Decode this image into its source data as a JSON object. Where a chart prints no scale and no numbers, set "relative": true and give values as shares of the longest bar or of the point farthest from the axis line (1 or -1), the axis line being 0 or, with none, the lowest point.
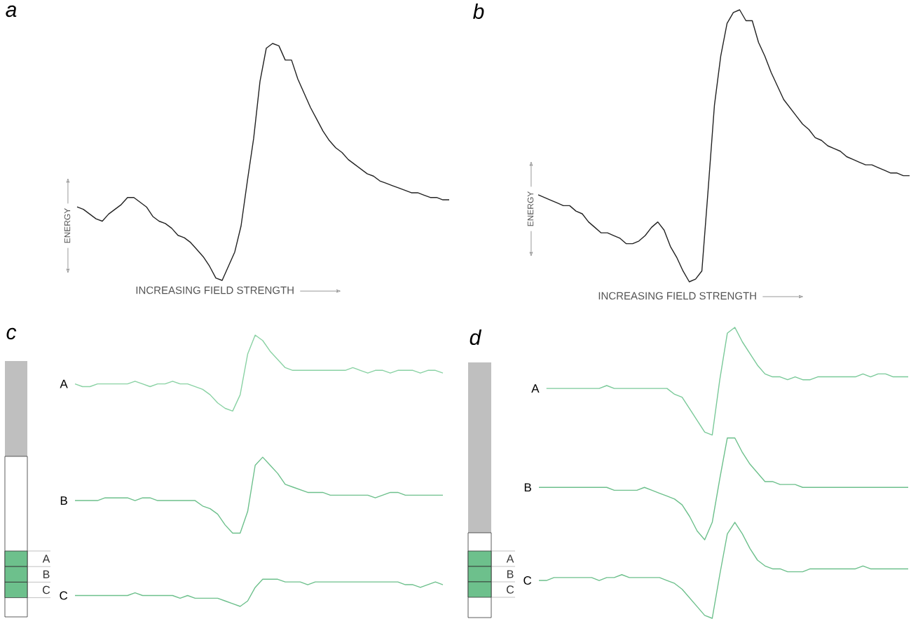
{
  "chart_data": [
    {
      "type": "line",
      "title": "a",
      "xlabel": "INCREASING FIELD STRENGTH",
      "ylabel": "ENERGY",
      "relative": true,
      "categories": [
        null,
        null,
        null,
        null,
        null,
        null,
        null,
        null,
        null,
        null,
        null,
        null,
        null,
        null,
        null,
        null,
        null,
        null,
        null,
        null,
        null,
        null,
        null,
        null,
        null,
        null,
        null,
        null,
        null,
        null,
        null,
        null,
        null,
        null,
        null,
        null,
        null,
        null,
        null,
        null,
        null,
        null,
        null,
        null,
        null,
        null,
        null,
        null,
        null,
        null,
        null,
        null,
        null,
        null,
        null,
        null,
        null,
        null,
        null,
        null
      ],
      "series": [
        {
          "color": "#222222",
          "values": [
            0.31,
            0.3,
            0.28,
            0.26,
            0.25,
            0.28,
            0.3,
            0.32,
            0.35,
            0.35,
            0.33,
            0.31,
            0.27,
            0.25,
            0.24,
            0.22,
            0.19,
            0.18,
            0.16,
            0.13,
            0.1,
            0.06,
            0.01,
            0,
            0.06,
            0.12,
            0.23,
            0.42,
            0.6,
            0.84,
            0.98,
            1,
            0.99,
            0.93,
            0.93,
            0.85,
            0.79,
            0.73,
            0.68,
            0.63,
            0.59,
            0.56,
            0.54,
            0.51,
            0.49,
            0.47,
            0.45,
            0.44,
            0.42,
            0.41,
            0.4,
            0.39,
            0.38,
            0.37,
            0.37,
            0.36,
            0.35,
            0.35,
            0.34,
            0.34
          ]
        }
      ]
    },
    {
      "type": "line",
      "title": "b",
      "xlabel": "INCREASING FIELD STRENGTH",
      "ylabel": "ENERGY",
      "relative": true,
      "categories": [
        null,
        null,
        null,
        null,
        null,
        null,
        null,
        null,
        null,
        null,
        null,
        null,
        null,
        null,
        null,
        null,
        null,
        null,
        null,
        null,
        null,
        null,
        null,
        null,
        null,
        null,
        null,
        null,
        null,
        null,
        null,
        null,
        null,
        null,
        null,
        null,
        null,
        null,
        null,
        null,
        null,
        null,
        null,
        null,
        null,
        null,
        null,
        null,
        null,
        null,
        null,
        null,
        null,
        null,
        null,
        null,
        null,
        null,
        null,
        null
      ],
      "series": [
        {
          "color": "#222222",
          "values": [
            0.32,
            0.31,
            0.3,
            0.29,
            0.28,
            0.28,
            0.26,
            0.25,
            0.22,
            0.2,
            0.18,
            0.18,
            0.17,
            0.16,
            0.14,
            0.14,
            0.15,
            0.17,
            0.2,
            0.22,
            0.19,
            0.13,
            0.09,
            0.04,
            0,
            0.01,
            0.04,
            0.34,
            0.65,
            0.83,
            0.95,
            0.99,
            1,
            0.96,
            0.96,
            0.88,
            0.83,
            0.77,
            0.72,
            0.67,
            0.64,
            0.61,
            0.58,
            0.56,
            0.53,
            0.52,
            0.5,
            0.49,
            0.48,
            0.46,
            0.45,
            0.44,
            0.43,
            0.43,
            0.42,
            0.41,
            0.4,
            0.4,
            0.39,
            0.39
          ]
        }
      ]
    },
    {
      "type": "line",
      "title": "c",
      "relative": true,
      "annotations": [
        "A",
        "B",
        "C"
      ],
      "categories": [
        null,
        null,
        null,
        null,
        null,
        null,
        null,
        null,
        null,
        null,
        null,
        null,
        null,
        null,
        null,
        null,
        null,
        null,
        null,
        null,
        null,
        null,
        null,
        null,
        null,
        null,
        null,
        null,
        null,
        null,
        null,
        null,
        null,
        null,
        null,
        null,
        null,
        null,
        null,
        null,
        null,
        null,
        null,
        null,
        null,
        null,
        null,
        null,
        null,
        null
      ],
      "series": [
        {
          "name": "A",
          "color": "#8ad2a4",
          "values": [
            0.82,
            0.81,
            0.81,
            0.82,
            0.82,
            0.82,
            0.82,
            0.82,
            0.83,
            0.82,
            0.81,
            0.82,
            0.82,
            0.83,
            0.82,
            0.82,
            0.81,
            0.8,
            0.78,
            0.75,
            0.73,
            0.72,
            0.78,
            0.93,
            1,
            0.98,
            0.94,
            0.91,
            0.88,
            0.87,
            0.87,
            0.87,
            0.87,
            0.87,
            0.87,
            0.87,
            0.87,
            0.88,
            0.87,
            0.86,
            0.87,
            0.87,
            0.86,
            0.87,
            0.87,
            0.87,
            0.86,
            0.87,
            0.87,
            0.86
          ]
        },
        {
          "name": "B",
          "color": "#6dc08c",
          "values": [
            0.39,
            0.39,
            0.39,
            0.39,
            0.4,
            0.4,
            0.4,
            0.4,
            0.39,
            0.4,
            0.4,
            0.39,
            0.39,
            0.39,
            0.39,
            0.39,
            0.39,
            0.37,
            0.36,
            0.34,
            0.3,
            0.27,
            0.27,
            0.35,
            0.52,
            0.55,
            0.52,
            0.49,
            0.45,
            0.44,
            0.43,
            0.42,
            0.42,
            0.42,
            0.41,
            0.41,
            0.41,
            0.41,
            0.41,
            0.41,
            0.4,
            0.41,
            0.42,
            0.42,
            0.41,
            0.41,
            0.41,
            0.41,
            0.41,
            0.41
          ]
        },
        {
          "name": "C",
          "color": "#6dc08c",
          "values": [
            0.04,
            0.04,
            0.04,
            0.04,
            0.04,
            0.04,
            0.04,
            0.04,
            0.05,
            0.04,
            0.04,
            0.04,
            0.04,
            0.04,
            0.03,
            0.04,
            0.03,
            0.03,
            0.03,
            0.03,
            0.02,
            0.01,
            0,
            0.02,
            0.07,
            0.1,
            0.1,
            0.1,
            0.09,
            0.09,
            0.09,
            0.08,
            0.09,
            0.09,
            0.09,
            0.09,
            0.09,
            0.09,
            0.09,
            0.09,
            0.09,
            0.09,
            0.09,
            0.09,
            0.08,
            0.08,
            0.07,
            0.08,
            0.09,
            0.08
          ]
        }
      ]
    },
    {
      "type": "line",
      "title": "d",
      "relative": true,
      "annotations": [
        "A",
        "B",
        "C"
      ],
      "categories": [
        null,
        null,
        null,
        null,
        null,
        null,
        null,
        null,
        null,
        null,
        null,
        null,
        null,
        null,
        null,
        null,
        null,
        null,
        null,
        null,
        null,
        null,
        null,
        null,
        null,
        null,
        null,
        null,
        null,
        null,
        null,
        null,
        null,
        null,
        null,
        null,
        null,
        null,
        null,
        null,
        null,
        null,
        null,
        null,
        null,
        null,
        null,
        null,
        null,
        null
      ],
      "series": [
        {
          "name": "A",
          "color": "#7ac999",
          "values": [
            null,
            0.79,
            0.79,
            0.79,
            0.79,
            0.79,
            0.79,
            0.79,
            0.79,
            0.8,
            0.79,
            0.79,
            0.79,
            0.79,
            0.79,
            0.79,
            0.79,
            0.79,
            0.77,
            0.76,
            0.72,
            0.68,
            0.64,
            0.63,
            0.82,
            0.98,
            1,
            0.95,
            0.91,
            0.87,
            0.84,
            0.83,
            0.83,
            0.82,
            0.83,
            0.82,
            0.82,
            0.83,
            0.83,
            0.83,
            0.83,
            0.83,
            0.83,
            0.84,
            0.83,
            0.84,
            0.84,
            0.83,
            0.83,
            0.83
          ]
        },
        {
          "name": "B",
          "color": "#6dc08c",
          "values": [
            0.45,
            0.45,
            0.45,
            0.45,
            0.45,
            0.45,
            0.45,
            0.45,
            0.45,
            0.45,
            0.44,
            0.44,
            0.44,
            0.44,
            0.45,
            0.44,
            0.43,
            0.42,
            0.41,
            0.39,
            0.35,
            0.3,
            0.27,
            0.33,
            0.48,
            0.62,
            0.62,
            0.57,
            0.53,
            0.5,
            0.47,
            0.47,
            0.46,
            0.46,
            0.46,
            0.45,
            0.45,
            0.45,
            0.45,
            0.45,
            0.45,
            0.45,
            0.45,
            0.45,
            0.45,
            0.45,
            0.45,
            0.45,
            0.45,
            0.45
          ]
        },
        {
          "name": "C",
          "color": "#6dc08c",
          "values": [
            0.13,
            0.13,
            0.14,
            0.14,
            0.14,
            0.14,
            0.14,
            0.14,
            0.13,
            0.14,
            0.14,
            0.15,
            0.14,
            0.14,
            0.14,
            0.14,
            0.14,
            0.13,
            0.12,
            0.1,
            0.07,
            0.04,
            0.01,
            0,
            0.15,
            0.29,
            0.33,
            0.29,
            0.24,
            0.2,
            0.18,
            0.17,
            0.17,
            0.16,
            0.16,
            0.16,
            0.17,
            0.17,
            0.17,
            0.17,
            0.17,
            0.17,
            0.17,
            0.18,
            0.17,
            0.17,
            0.17,
            0.17,
            0.17,
            0.17
          ]
        }
      ]
    }
  ]
}
